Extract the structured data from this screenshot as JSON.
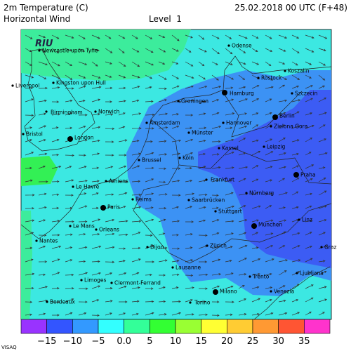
{
  "header": {
    "title": "2m Temperature (C)",
    "subtitle": "Horizontal Wind",
    "level": "Level  1",
    "date": "25.02.2018 00 UTC (F+48)"
  },
  "logo": "RIU",
  "cities": [
    "Newcastle upon Tyne",
    "Kingston upon Hull",
    "Liverpool",
    "Birmingham",
    "Norwich",
    "Bristol",
    "London",
    "Amsterdam",
    "Groningen",
    "Hamburg",
    "Odense",
    "Rostock",
    "Koszalin",
    "Szczecin",
    "Berlin",
    "Hannover",
    "Münster",
    "Zielona Gora",
    "Kassel",
    "Leipzig",
    "Brussel",
    "Köln",
    "Frankfurt",
    "Praha",
    "Le Havre",
    "Amiens",
    "Nürnberg",
    "Reims",
    "Paris",
    "Saarbrücken",
    "Stuttgart",
    "Le Mans",
    "Orleans",
    "München",
    "Linz",
    "Nantes",
    "Dijon",
    "Zürich",
    "Graz",
    "Lausanne",
    "Trento",
    "Ljubljana",
    "Limoges",
    "Clermont-Ferrand",
    "Milano",
    "Venezia",
    "Bordeaux",
    "Torino"
  ],
  "colorbar": {
    "labels": [
      "−15",
      "−10",
      "−5",
      "0.0",
      "5",
      "10",
      "15",
      "20",
      "25",
      "30",
      "35"
    ]
  },
  "footer": "VISAQ"
}
